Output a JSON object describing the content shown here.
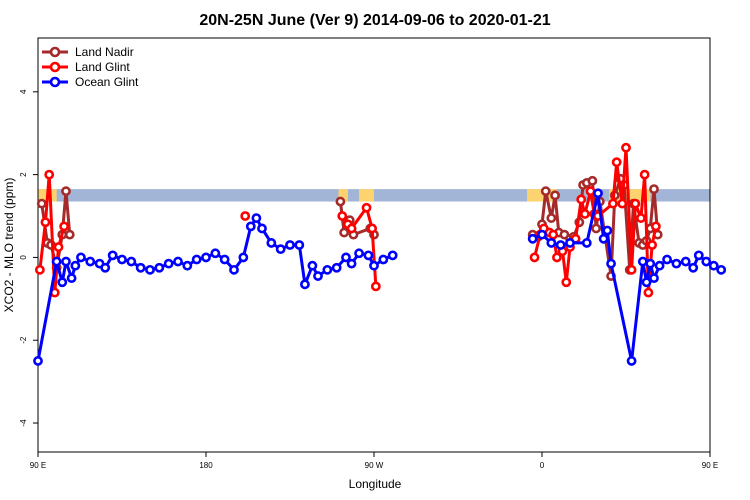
{
  "chart_data": {
    "type": "line",
    "title": "20N-25N June (Ver 9)   2014-09-06 to 2020-01-21",
    "xlabel": "Longitude",
    "ylabel": "XCO2 - MLO trend (ppm)",
    "xlim": [
      90,
      450
    ],
    "ylim": [
      -4.7,
      5.3
    ],
    "x_ticks": [
      90,
      180,
      270,
      360,
      450
    ],
    "x_tick_labels": [
      "90 E",
      "180",
      "90 W",
      "0",
      "90 E"
    ],
    "y_ticks": [
      -4,
      -2,
      0,
      2,
      4
    ],
    "y_tick_labels": [
      "-4",
      "-2",
      "0",
      "2",
      "4"
    ],
    "legend_position": "top-left",
    "band": {
      "y_range": [
        1.35,
        1.65
      ],
      "land_color": "#fdd36f",
      "ocean_color": "#a2b5d6"
    },
    "series": [
      {
        "name": "Land Nadir",
        "color": "#a52a2a",
        "points": [
          [
            92,
            1.3
          ],
          [
            95,
            0.35
          ],
          [
            97,
            0.3
          ],
          [
            100,
            -0.25
          ],
          [
            103,
            0.55
          ],
          [
            105,
            1.6
          ],
          [
            107,
            0.55
          ],
          [
            252,
            1.35
          ],
          [
            254,
            0.6
          ],
          [
            257,
            0.9
          ],
          [
            259,
            0.55
          ],
          [
            268,
            0.7
          ],
          [
            270,
            0.55
          ],
          [
            355,
            0.55
          ],
          [
            358,
            0.5
          ],
          [
            360,
            0.8
          ],
          [
            362,
            1.6
          ],
          [
            365,
            0.95
          ],
          [
            367,
            1.5
          ],
          [
            369,
            0.6
          ],
          [
            372,
            0.55
          ],
          [
            375,
            0.45
          ],
          [
            377,
            0.5
          ],
          [
            380,
            0.85
          ],
          [
            382,
            1.75
          ],
          [
            384,
            1.8
          ],
          [
            387,
            1.85
          ],
          [
            389,
            0.7
          ],
          [
            391,
            1.35
          ],
          [
            397,
            -0.45
          ],
          [
            399,
            1.5
          ],
          [
            402,
            1.9
          ],
          [
            404,
            1.75
          ],
          [
            407,
            -0.3
          ],
          [
            409,
            1.3
          ],
          [
            412,
            0.35
          ],
          [
            414,
            0.3
          ],
          [
            416,
            0.4
          ],
          [
            418,
            0.7
          ],
          [
            420,
            1.65
          ],
          [
            422,
            0.55
          ]
        ]
      },
      {
        "name": "Land Glint",
        "color": "#ff0000",
        "points": [
          [
            91,
            -0.3
          ],
          [
            94,
            0.85
          ],
          [
            96,
            2.0
          ],
          [
            99,
            -0.85
          ],
          [
            101,
            0.25
          ],
          [
            104,
            0.75
          ],
          [
            201,
            1.0
          ],
          [
            253,
            1.0
          ],
          [
            256,
            0.8
          ],
          [
            258,
            0.7
          ],
          [
            266,
            1.2
          ],
          [
            269,
            0.7
          ],
          [
            271,
            -0.7
          ],
          [
            356,
            0.0
          ],
          [
            359,
            0.55
          ],
          [
            361,
            0.7
          ],
          [
            364,
            0.6
          ],
          [
            366,
            0.55
          ],
          [
            368,
            0.0
          ],
          [
            371,
            0.15
          ],
          [
            373,
            -0.6
          ],
          [
            375,
            0.25
          ],
          [
            378,
            0.45
          ],
          [
            381,
            1.4
          ],
          [
            383,
            1.05
          ],
          [
            386,
            1.6
          ],
          [
            388,
            1.05
          ],
          [
            390,
            1.0
          ],
          [
            398,
            1.3
          ],
          [
            400,
            2.3
          ],
          [
            403,
            1.3
          ],
          [
            405,
            2.65
          ],
          [
            408,
            -0.3
          ],
          [
            410,
            1.3
          ],
          [
            413,
            0.95
          ],
          [
            415,
            2.0
          ],
          [
            417,
            -0.85
          ],
          [
            419,
            0.3
          ],
          [
            421,
            0.75
          ]
        ]
      },
      {
        "name": "Ocean Glint",
        "color": "#0000ff",
        "points": [
          [
            90,
            -2.5
          ],
          [
            100,
            -0.1
          ],
          [
            103,
            -0.6
          ],
          [
            105,
            -0.1
          ],
          [
            108,
            -0.5
          ],
          [
            110,
            -0.2
          ],
          [
            113,
            0.0
          ],
          [
            118,
            -0.1
          ],
          [
            123,
            -0.15
          ],
          [
            126,
            -0.25
          ],
          [
            130,
            0.05
          ],
          [
            135,
            -0.05
          ],
          [
            140,
            -0.1
          ],
          [
            145,
            -0.25
          ],
          [
            150,
            -0.3
          ],
          [
            155,
            -0.25
          ],
          [
            160,
            -0.15
          ],
          [
            165,
            -0.1
          ],
          [
            170,
            -0.2
          ],
          [
            175,
            -0.05
          ],
          [
            180,
            0.0
          ],
          [
            185,
            0.1
          ],
          [
            190,
            -0.05
          ],
          [
            195,
            -0.3
          ],
          [
            200,
            0.0
          ],
          [
            204,
            0.75
          ],
          [
            207,
            0.95
          ],
          [
            210,
            0.7
          ],
          [
            215,
            0.35
          ],
          [
            220,
            0.2
          ],
          [
            225,
            0.3
          ],
          [
            230,
            0.3
          ],
          [
            233,
            -0.65
          ],
          [
            237,
            -0.2
          ],
          [
            240,
            -0.45
          ],
          [
            245,
            -0.3
          ],
          [
            250,
            -0.25
          ],
          [
            255,
            0.0
          ],
          [
            258,
            -0.15
          ],
          [
            262,
            0.1
          ],
          [
            267,
            0.05
          ],
          [
            270,
            -0.2
          ],
          [
            275,
            -0.05
          ],
          [
            280,
            0.05
          ],
          [
            355,
            0.45
          ],
          [
            360,
            0.55
          ],
          [
            365,
            0.35
          ],
          [
            370,
            0.3
          ],
          [
            375,
            0.35
          ],
          [
            384,
            0.35
          ],
          [
            390,
            1.55
          ],
          [
            393,
            0.45
          ],
          [
            395,
            0.65
          ],
          [
            397,
            -0.15
          ],
          [
            408,
            -2.5
          ],
          [
            414,
            -0.1
          ],
          [
            416,
            -0.6
          ],
          [
            418,
            -0.15
          ],
          [
            420,
            -0.5
          ],
          [
            423,
            -0.2
          ],
          [
            427,
            -0.05
          ],
          [
            432,
            -0.15
          ],
          [
            437,
            -0.1
          ],
          [
            441,
            -0.25
          ],
          [
            444,
            0.05
          ],
          [
            448,
            -0.1
          ],
          [
            452,
            -0.2
          ],
          [
            456,
            -0.3
          ]
        ]
      }
    ]
  }
}
